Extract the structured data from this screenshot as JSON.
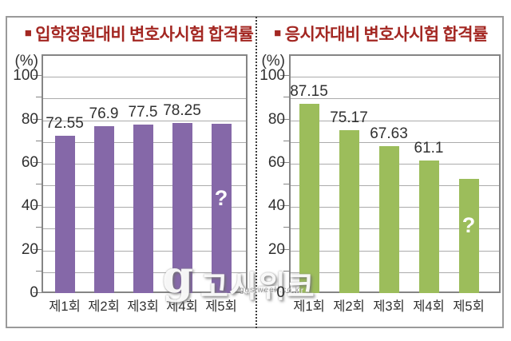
{
  "chart_data": [
    {
      "type": "bar",
      "bullet": "■",
      "title": "입학정원대비 변호사시험 합격률",
      "unit_label": "(%)",
      "categories": [
        "제1회",
        "제2회",
        "제3회",
        "제4회",
        "제5회"
      ],
      "values": [
        72.55,
        76.9,
        77.5,
        78.25,
        null
      ],
      "value_labels": [
        "72.55",
        "76.9",
        "77.5",
        "78.25",
        ""
      ],
      "bar_display_heights": [
        72.55,
        76.9,
        77.5,
        78.25,
        78.0
      ],
      "unknown_bar": {
        "index": 4,
        "marker": "?"
      },
      "bar_color": "#8568A8",
      "ylim": [
        0,
        110
      ],
      "yticks": [
        0,
        20,
        40,
        60,
        80,
        100
      ],
      "grid_step": 10,
      "grid": true
    },
    {
      "type": "bar",
      "bullet": "■",
      "title": "응시자대비 변호사시험 합격률",
      "unit_label": "(%)",
      "categories": [
        "제1회",
        "제2회",
        "제3회",
        "제4회",
        "제5회"
      ],
      "values": [
        87.15,
        75.17,
        67.63,
        61.1,
        null
      ],
      "value_labels": [
        "87.15",
        "75.17",
        "67.63",
        "61.1",
        ""
      ],
      "bar_display_heights": [
        87.15,
        75.17,
        67.63,
        61.1,
        52.5
      ],
      "unknown_bar": {
        "index": 4,
        "marker": "?"
      },
      "bar_color": "#9CBD5B",
      "ylim": [
        0,
        110
      ],
      "yticks": [
        0,
        20,
        40,
        60,
        80,
        100
      ],
      "grid_step": 10,
      "grid": true
    }
  ],
  "watermark": {
    "logo_glyph": "g",
    "text": "고시위크",
    "subtext": "gosiweek.co.kr"
  },
  "colors": {
    "title": "#A32722",
    "left_bar": "#8568A8",
    "right_bar": "#9CBD5B",
    "grid": "#ABABAB",
    "frame": "#858585",
    "text": "#303030"
  }
}
